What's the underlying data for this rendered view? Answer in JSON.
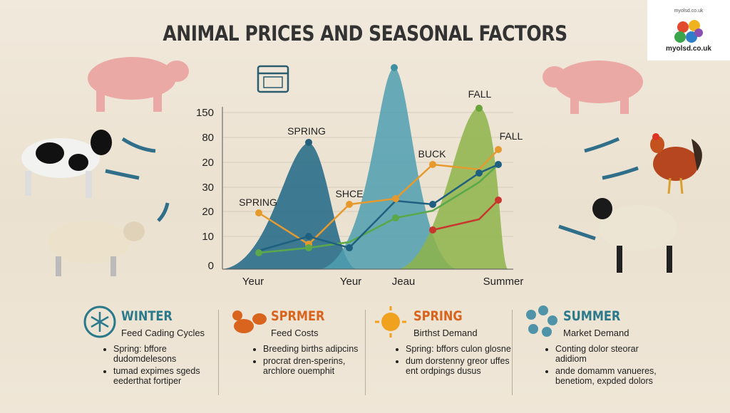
{
  "header": {
    "title": "ANIMAL PRICES AND SEASONAL FACTORS",
    "logo_top": "myolsd.co.uk",
    "logo_bottom": "myolsd.co.uk"
  },
  "chart": {
    "y_labels": [
      150,
      80,
      20,
      30,
      20,
      10,
      0
    ],
    "x_labels": [
      "Yeur",
      "Yeur",
      "Jeau",
      "Summer"
    ],
    "annotations": [
      "SPRING",
      "SPRING",
      "SHCE",
      "BUCK",
      "FALL",
      "FALL"
    ]
  },
  "panels": [
    {
      "heading": "WINTER",
      "subtitle": "Feed Cading Cycles",
      "bullets": [
        "Spring: bffore dudomdelesons",
        "tumad expimes sgeds eederthat fortiper"
      ]
    },
    {
      "heading": "SPRMER",
      "subtitle": "Feed Costs",
      "bullets": [
        "Breeding births adipcins",
        "procrat dren-sperins, archlore ouemphit"
      ]
    },
    {
      "heading": "SPRING",
      "subtitle": "Birthst Demand",
      "bullets": [
        "Spring: bffors culon glosne",
        "dum dorstenny greor uffes ent ordpings dusus"
      ]
    },
    {
      "heading": "SUMMER",
      "subtitle": "Market Demand",
      "bullets": [
        "Conting dolor steorar adidiom",
        "ande domamm vanueres, benetiom, expded dolors"
      ]
    }
  ]
}
